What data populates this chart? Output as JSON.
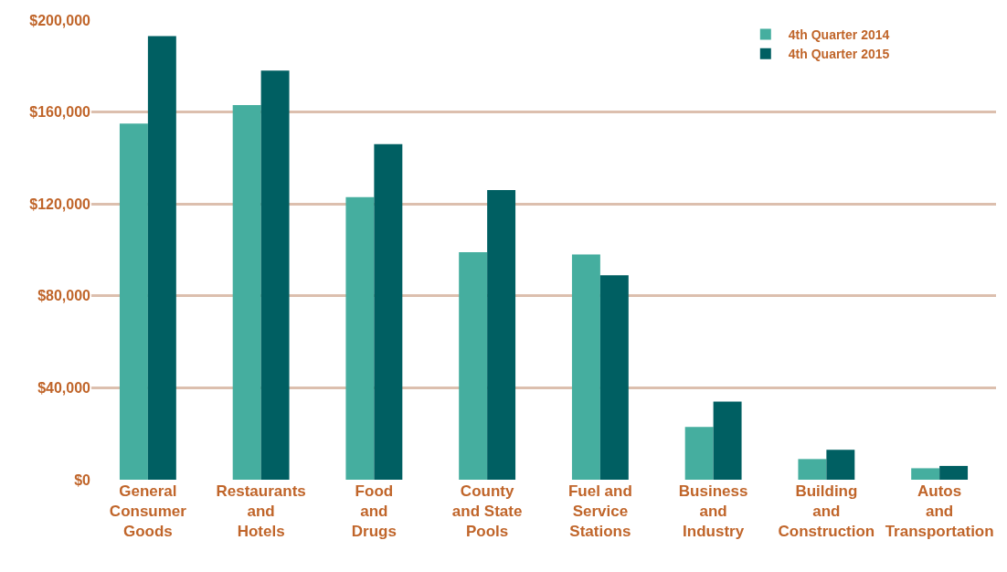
{
  "chart_data": {
    "type": "bar",
    "categories": [
      "General\nConsumer\nGoods",
      "Restaurants\nand\nHotels",
      "Food\nand\nDrugs",
      "County\nand State\nPools",
      "Fuel and\nService\nStations",
      "Business\nand\nIndustry",
      "Building\nand\nConstruction",
      "Autos\nand\nTransportation"
    ],
    "series": [
      {
        "name": "4th Quarter 2014",
        "color": "#45ae9f",
        "values": [
          155000,
          163000,
          123000,
          99000,
          98000,
          23000,
          9000,
          5000
        ]
      },
      {
        "name": "4th Quarter 2015",
        "color": "#005f62",
        "values": [
          193000,
          178000,
          146000,
          126000,
          89000,
          34000,
          13000,
          6000
        ]
      }
    ],
    "ylim": [
      0,
      200000
    ],
    "yticks": [
      {
        "value": 0,
        "label": "$0"
      },
      {
        "value": 40000,
        "label": "$40,000"
      },
      {
        "value": 80000,
        "label": "$80,000"
      },
      {
        "value": 120000,
        "label": "$120,000"
      },
      {
        "value": 160000,
        "label": "$160,000"
      },
      {
        "value": 200000,
        "label": "$200,000"
      }
    ],
    "grid": "y",
    "legend": "top right"
  }
}
